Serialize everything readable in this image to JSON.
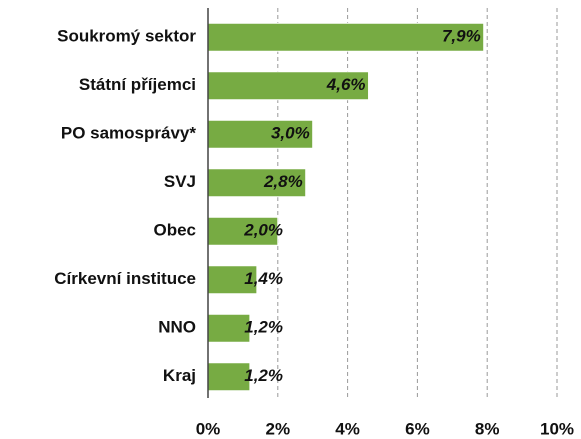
{
  "chart_data": {
    "type": "hbar",
    "categories": [
      "Soukromý sektor",
      "Státní příjemci",
      "PO samosprávy*",
      "SVJ",
      "Obec",
      "Církevní instituce",
      "NNO",
      "Kraj"
    ],
    "values": [
      7.9,
      4.6,
      3.0,
      2.8,
      2.0,
      1.4,
      1.2,
      1.2
    ],
    "value_labels": [
      "7,9%",
      "4,6%",
      "3,0%",
      "2,8%",
      "2,0%",
      "1,4%",
      "1,2%",
      "1,2%"
    ],
    "color": "#77ab43",
    "xlim": [
      0,
      10
    ],
    "xticks": [
      {
        "value": 0,
        "label": "0%"
      },
      {
        "value": 2,
        "label": "2%"
      },
      {
        "value": 4,
        "label": "4%"
      },
      {
        "value": 6,
        "label": "6%"
      },
      {
        "value": 8,
        "label": "8%"
      },
      {
        "value": 10,
        "label": "10%"
      }
    ],
    "grid": true
  }
}
